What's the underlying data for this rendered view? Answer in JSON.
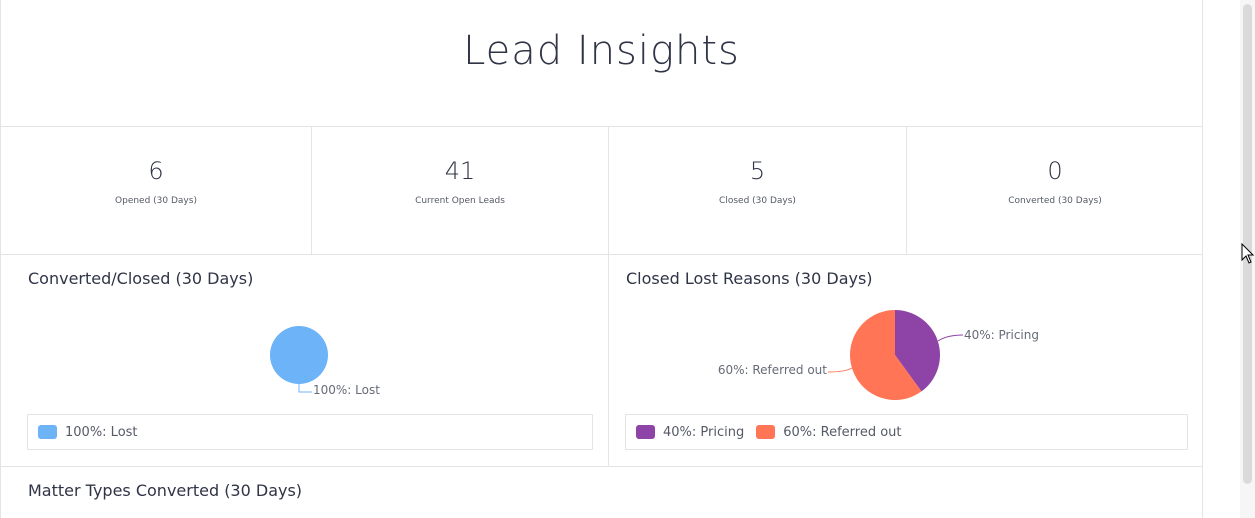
{
  "header": {
    "title": "Lead Insights"
  },
  "stats": [
    {
      "value": "6",
      "label": "Opened (30 Days)"
    },
    {
      "value": "41",
      "label": "Current Open Leads"
    },
    {
      "value": "5",
      "label": "Closed (30 Days)"
    },
    {
      "value": "0",
      "label": "Converted (30 Days)"
    }
  ],
  "panels": {
    "converted_closed": {
      "title": "Converted/Closed (30 Days)",
      "slice_label": "100%: Lost",
      "legend": [
        {
          "label": "100%: Lost",
          "color": "#6db3f8"
        }
      ]
    },
    "closed_lost": {
      "title": "Closed Lost Reasons (30 Days)",
      "slice_labels": [
        "40%: Pricing",
        "60%: Referred out"
      ],
      "legend": [
        {
          "label": "40%: Pricing",
          "color": "#8e44a7"
        },
        {
          "label": "60%: Referred out",
          "color": "#ff7555"
        }
      ]
    },
    "matter_types": {
      "title": "Matter Types Converted (30 Days)"
    }
  },
  "chart_data": [
    {
      "type": "pie",
      "title": "Converted/Closed (30 Days)",
      "categories": [
        "Lost"
      ],
      "values": [
        100
      ],
      "colors": [
        "#6db3f8"
      ]
    },
    {
      "type": "pie",
      "title": "Closed Lost Reasons (30 Days)",
      "categories": [
        "Pricing",
        "Referred out"
      ],
      "values": [
        40,
        60
      ],
      "colors": [
        "#8e44a7",
        "#ff7555"
      ]
    }
  ]
}
